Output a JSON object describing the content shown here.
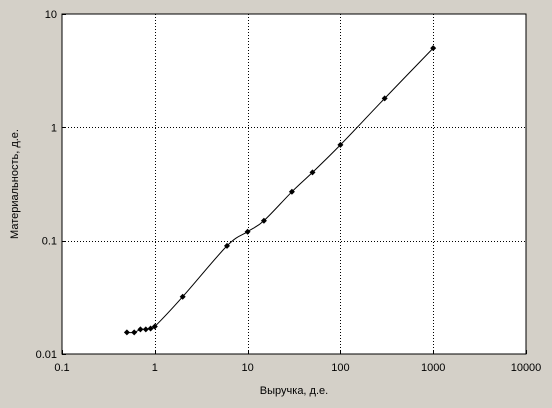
{
  "chart_data": {
    "type": "line",
    "xscale": "log",
    "yscale": "log",
    "xlabel": "Выручка, д.е.",
    "ylabel": "Материальность, д.е.",
    "xlim": [
      0.1,
      10000
    ],
    "ylim": [
      0.01,
      10
    ],
    "grid": true,
    "x_ticks": [
      {
        "value": 0.1,
        "label": "0.1"
      },
      {
        "value": 1,
        "label": "1"
      },
      {
        "value": 10,
        "label": "10"
      },
      {
        "value": 100,
        "label": "100"
      },
      {
        "value": 1000,
        "label": "1000"
      },
      {
        "value": 10000,
        "label": "10000"
      }
    ],
    "y_ticks": [
      {
        "value": 0.01,
        "label": "0.01"
      },
      {
        "value": 0.1,
        "label": "0.1"
      },
      {
        "value": 1,
        "label": "1"
      },
      {
        "value": 10,
        "label": "10"
      }
    ],
    "series": [
      {
        "points": [
          {
            "x": 0.5,
            "y": 0.0155
          },
          {
            "x": 0.6,
            "y": 0.0155
          },
          {
            "x": 0.7,
            "y": 0.0165
          },
          {
            "x": 0.8,
            "y": 0.0165
          },
          {
            "x": 0.9,
            "y": 0.0168
          },
          {
            "x": 1,
            "y": 0.0175
          },
          {
            "x": 2,
            "y": 0.032
          },
          {
            "x": 6,
            "y": 0.09
          },
          {
            "x": 10,
            "y": 0.12
          },
          {
            "x": 15,
            "y": 0.15
          },
          {
            "x": 30,
            "y": 0.27
          },
          {
            "x": 50,
            "y": 0.4
          },
          {
            "x": 100,
            "y": 0.7
          },
          {
            "x": 300,
            "y": 1.8
          },
          {
            "x": 1000,
            "y": 5
          }
        ]
      }
    ]
  },
  "colors": {
    "background": "#d4d0c8",
    "plot_area": "#ffffff",
    "line": "#000000",
    "grid": "#000000"
  }
}
